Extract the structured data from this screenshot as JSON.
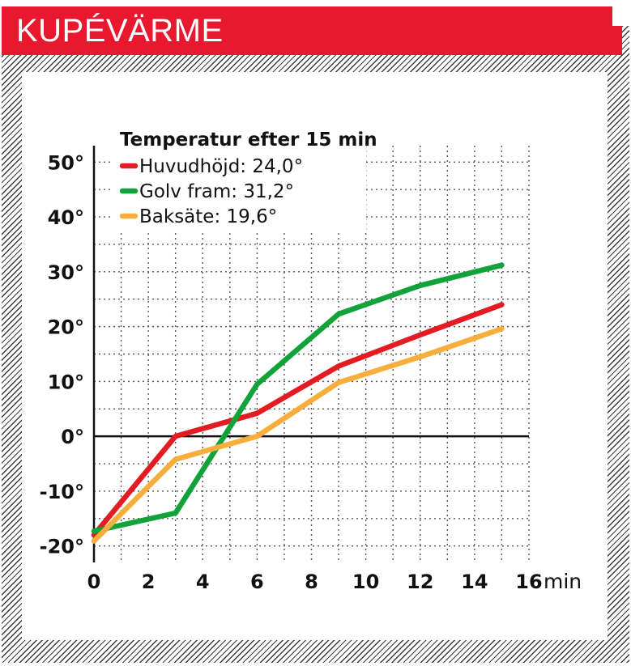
{
  "chart_data": {
    "type": "line",
    "title": "KUPÉVÄRME",
    "xlabel": "min",
    "ylabel": "",
    "xlim": [
      0,
      16
    ],
    "ylim": [
      -23,
      53
    ],
    "x_ticks": [
      0,
      2,
      4,
      6,
      8,
      10,
      12,
      14,
      16
    ],
    "y_ticks": [
      -20,
      -10,
      0,
      10,
      20,
      30,
      40,
      50
    ],
    "x_tick_labels": [
      "0",
      "2",
      "4",
      "6",
      "8",
      "10",
      "12",
      "14",
      "16"
    ],
    "y_tick_labels": [
      "-20°",
      "-10°",
      "0°",
      "10°",
      "20°",
      "30°",
      "40°",
      "50°"
    ],
    "grid": true,
    "legend": {
      "title": "Temperatur efter 15 min",
      "placement": "top-left"
    },
    "series": [
      {
        "name": "Huvudhöjd: 24,0°",
        "color": "#e31b23",
        "points": [
          [
            0,
            -18
          ],
          [
            3,
            0
          ],
          [
            6,
            4.2
          ],
          [
            9,
            12.8
          ],
          [
            12,
            18.5
          ],
          [
            15,
            24.0
          ]
        ]
      },
      {
        "name": "Golv fram: 31,2°",
        "color": "#12a23a",
        "points": [
          [
            0,
            -17.3
          ],
          [
            3,
            -14
          ],
          [
            6,
            9.5
          ],
          [
            9,
            22.3
          ],
          [
            12,
            27.5
          ],
          [
            15,
            31.2
          ]
        ]
      },
      {
        "name": "Baksäte: 19,6°",
        "color": "#f7ae3d",
        "points": [
          [
            0,
            -19.1
          ],
          [
            3,
            -4.2
          ],
          [
            6,
            0
          ],
          [
            9,
            9.8
          ],
          [
            12,
            14.5
          ],
          [
            15,
            19.6
          ]
        ]
      }
    ]
  }
}
